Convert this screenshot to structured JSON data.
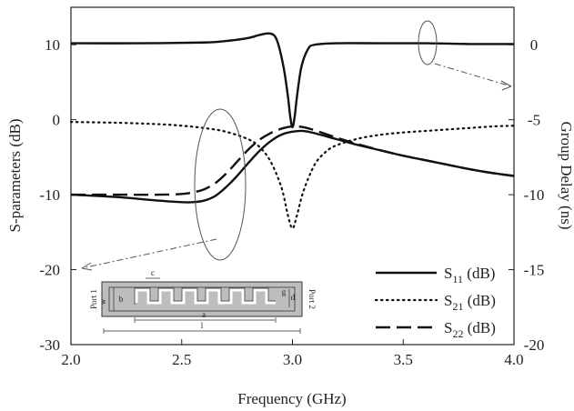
{
  "chart_data": {
    "type": "line",
    "title": "",
    "xlabel": "Frequency (GHz)",
    "ylabel": "S-parameters (dB)",
    "y2label": "Group Delay (ns)",
    "xlim": [
      2.0,
      4.0
    ],
    "ylim": [
      -30,
      15
    ],
    "y2lim": [
      -20,
      2.5
    ],
    "x_ticks": [
      "2.0",
      "2.5",
      "3.0",
      "3.5",
      "4.0"
    ],
    "y_ticks": [
      "-30",
      "-20",
      "-10",
      "0",
      "10"
    ],
    "y2_ticks": [
      "-20",
      "-15",
      "-10",
      "-5",
      "0"
    ],
    "grid": false,
    "legend_position": "bottom-right",
    "series": [
      {
        "name": "S11 (dB)",
        "label_main": "S",
        "label_sub": "11",
        "label_unit": " (dB)",
        "style": "solid",
        "axis": "left",
        "x": [
          2.0,
          2.2,
          2.4,
          2.5,
          2.55,
          2.6,
          2.65,
          2.7,
          2.75,
          2.8,
          2.85,
          2.9,
          2.95,
          3.0,
          3.05,
          3.1,
          3.2,
          3.3,
          3.4,
          3.5,
          3.6,
          3.7,
          3.8,
          3.9,
          4.0
        ],
        "values": [
          -10.0,
          -10.3,
          -10.8,
          -11.0,
          -11.0,
          -10.8,
          -10.2,
          -9.0,
          -7.5,
          -5.8,
          -4.2,
          -2.9,
          -2.0,
          -1.6,
          -1.5,
          -1.8,
          -2.6,
          -3.4,
          -4.1,
          -4.8,
          -5.4,
          -6.0,
          -6.6,
          -7.1,
          -7.5
        ]
      },
      {
        "name": "S21 (dB)",
        "label_main": "S",
        "label_sub": "21",
        "label_unit": " (dB)",
        "style": "dotted",
        "axis": "left",
        "x": [
          2.0,
          2.2,
          2.4,
          2.5,
          2.6,
          2.7,
          2.8,
          2.85,
          2.9,
          2.95,
          2.98,
          3.0,
          3.02,
          3.05,
          3.1,
          3.15,
          3.2,
          3.3,
          3.4,
          3.5,
          3.6,
          3.7,
          3.8,
          3.9,
          4.0
        ],
        "values": [
          -0.3,
          -0.4,
          -0.6,
          -0.8,
          -1.1,
          -1.6,
          -2.6,
          -3.6,
          -5.5,
          -9.0,
          -12.8,
          -14.5,
          -12.8,
          -9.5,
          -6.0,
          -4.3,
          -3.4,
          -2.5,
          -2.0,
          -1.7,
          -1.5,
          -1.3,
          -1.1,
          -0.9,
          -0.8
        ]
      },
      {
        "name": "S22 (dB)",
        "label_main": "S",
        "label_sub": "22",
        "label_unit": " (dB)",
        "style": "dashed",
        "axis": "left",
        "x": [
          2.0,
          2.2,
          2.4,
          2.5,
          2.55,
          2.6,
          2.65,
          2.7,
          2.75,
          2.8,
          2.85,
          2.9,
          2.95,
          3.0,
          3.05,
          3.1,
          3.2,
          3.3,
          3.4,
          3.5,
          3.6,
          3.7,
          3.8,
          3.9,
          4.0
        ],
        "values": [
          -10.0,
          -10.0,
          -10.0,
          -9.9,
          -9.7,
          -9.3,
          -8.5,
          -7.2,
          -5.6,
          -4.0,
          -2.7,
          -1.8,
          -1.2,
          -0.9,
          -1.0,
          -1.4,
          -2.4,
          -3.3,
          -4.1,
          -4.8,
          -5.4,
          -6.0,
          -6.6,
          -7.1,
          -7.5
        ]
      },
      {
        "name": "Group Delay (ns)",
        "style": "solid",
        "axis": "right",
        "x": [
          2.0,
          2.3,
          2.6,
          2.7,
          2.8,
          2.85,
          2.9,
          2.93,
          2.96,
          2.98,
          2.99,
          3.0,
          3.01,
          3.02,
          3.04,
          3.07,
          3.1,
          3.2,
          3.4,
          3.6,
          3.8,
          4.0
        ],
        "values": [
          0.1,
          0.1,
          0.15,
          0.25,
          0.45,
          0.65,
          0.75,
          0.3,
          -1.5,
          -3.5,
          -4.8,
          -5.5,
          -4.8,
          -3.5,
          -1.5,
          -0.3,
          0.0,
          0.1,
          0.1,
          0.1,
          0.05,
          0.05
        ]
      }
    ],
    "inset": {
      "port1_label": "Port 1",
      "port2_label": "Port 2",
      "dim_labels": [
        "c",
        "b",
        "w",
        "g",
        "d",
        "a",
        "l"
      ]
    }
  }
}
